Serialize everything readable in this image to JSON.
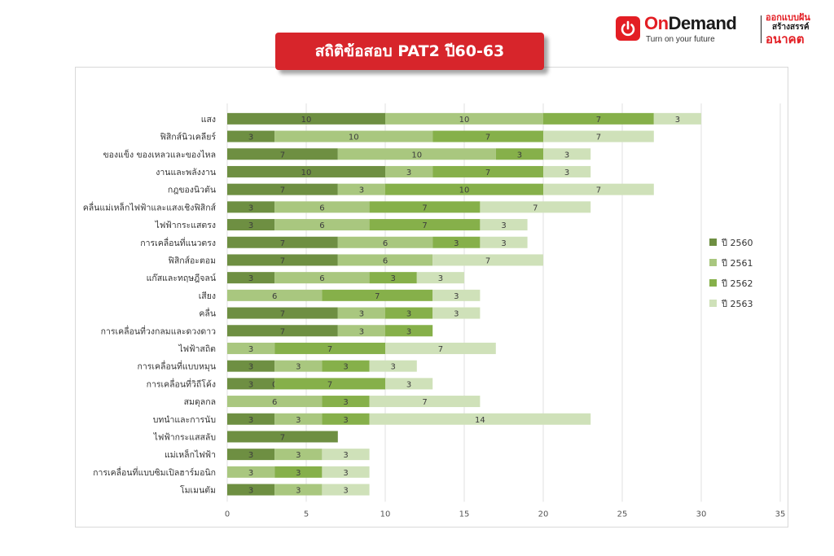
{
  "brand": {
    "name_part1": "On",
    "name_part2": "Demand",
    "tagline": "Turn on your future",
    "thai_line1": "ออกแบบฝัน",
    "thai_line2": "สร้างสรรค์",
    "thai_line3": "อนาคต",
    "icon": "power-icon",
    "accent_color": "#e31e24"
  },
  "title": "สถิติข้อสอบ PAT2 ปี60-63",
  "chart_data": {
    "type": "bar",
    "orientation": "horizontal",
    "stacked": true,
    "title": "สถิติข้อสอบ PAT2 ปี60-63",
    "xlabel": "",
    "ylabel": "",
    "xlim": [
      0,
      35
    ],
    "xticks": [
      0,
      5,
      10,
      15,
      20,
      25,
      30,
      35
    ],
    "grid": "vertical",
    "legend_position": "right",
    "categories": [
      "แสง",
      "ฟิสิกส์นิวเคลียร์",
      "ของแข็ง ของเหลวและของไหล",
      "งานและพลังงาน",
      "กฎของนิวตัน",
      "คลื่นแม่เหล็กไฟฟ้าและแสงเชิงฟิสิกส์",
      "ไฟฟ้ากระแสตรง",
      "การเคลื่อนที่แนวตรง",
      "ฟิสิกส์อะตอม",
      "แก๊สและทฤษฎีจลน์",
      "เสียง",
      "คลื่น",
      "การเคลื่อนที่วงกลมและดวงดาว",
      "ไฟฟ้าสถิต",
      "การเคลื่อนที่แบบหมุน",
      "การเคลื่อนที่วิถีโค้ง",
      "สมดุลกล",
      "บทนำและการนับ",
      "ไฟฟ้ากระแสสลับ",
      "แม่เหล็กไฟฟ้า",
      "การเคลื่อนที่แบบซิมเปิลฮาร์มอนิก",
      "โมเมนตัม"
    ],
    "series": [
      {
        "name": "ปี 2560",
        "color": "#6e8f42",
        "values": [
          10,
          3,
          7,
          10,
          7,
          3,
          3,
          7,
          7,
          3,
          null,
          7,
          7,
          null,
          3,
          3,
          null,
          3,
          7,
          3,
          null,
          3
        ]
      },
      {
        "name": "ปี 2561",
        "color": "#a9c77f",
        "values": [
          10,
          10,
          10,
          3,
          3,
          6,
          6,
          6,
          6,
          6,
          6,
          3,
          3,
          3,
          3,
          0,
          6,
          3,
          null,
          3,
          3,
          3
        ]
      },
      {
        "name": "ปี 2562",
        "color": "#86b04a",
        "values": [
          7,
          7,
          3,
          7,
          10,
          7,
          7,
          3,
          null,
          3,
          7,
          3,
          3,
          7,
          3,
          7,
          3,
          3,
          null,
          null,
          3,
          null
        ]
      },
      {
        "name": "ปี 2563",
        "color": "#cfe1b9",
        "values": [
          3,
          7,
          3,
          3,
          7,
          7,
          3,
          3,
          7,
          3,
          3,
          3,
          null,
          7,
          3,
          3,
          7,
          14,
          null,
          3,
          3,
          3
        ]
      }
    ]
  }
}
